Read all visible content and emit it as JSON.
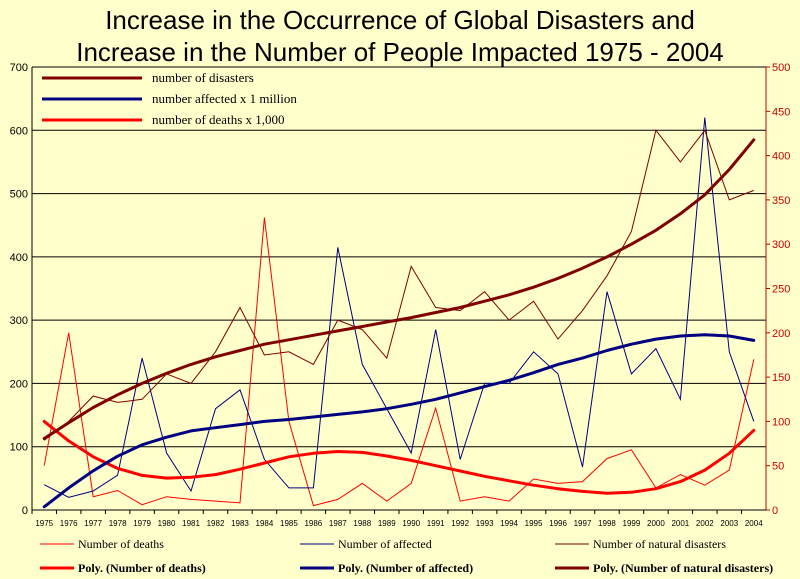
{
  "chart_data": {
    "type": "line",
    "title_line1": "Increase in the Occurrence of Global Disasters and",
    "title_line2": "Increase in the Number of People Impacted 1975 - 2004",
    "categories": [
      "1975",
      "1976",
      "1977",
      "1978",
      "1979",
      "1980",
      "1981",
      "1982",
      "1983",
      "1984",
      "1985",
      "1986",
      "1987",
      "1988",
      "1989",
      "1990",
      "1991",
      "1992",
      "1993",
      "1994",
      "1995",
      "1996",
      "1997",
      "1998",
      "1999",
      "2000",
      "2001",
      "2002",
      "2003",
      "2004"
    ],
    "y_left": {
      "min": 0,
      "max": 700,
      "ticks": [
        "0",
        "100",
        "200",
        "300",
        "400",
        "500",
        "600",
        "700"
      ]
    },
    "y_right": {
      "min": 0,
      "max": 500,
      "ticks": [
        "0",
        "50",
        "100",
        "150",
        "200",
        "250",
        "300",
        "350",
        "400",
        "450",
        "500"
      ]
    },
    "series": [
      {
        "name": "Number of deaths",
        "axis": "right",
        "color": "#ff0000",
        "values": [
          50,
          200,
          15,
          22,
          6,
          15,
          12,
          10,
          8,
          330,
          100,
          5,
          12,
          30,
          10,
          30,
          115,
          10,
          15,
          10,
          35,
          30,
          32,
          58,
          68,
          25,
          40,
          28,
          45,
          170
        ]
      },
      {
        "name": "Number of affected",
        "axis": "left",
        "color": "#000080",
        "values": [
          40,
          20,
          30,
          55,
          240,
          90,
          30,
          160,
          190,
          80,
          35,
          35,
          415,
          230,
          160,
          90,
          285,
          80,
          200,
          200,
          250,
          215,
          68,
          345,
          215,
          255,
          175,
          620,
          250,
          140
        ]
      },
      {
        "name": "Number of natural disasters",
        "axis": "left",
        "color": "#800000",
        "values": [
          110,
          140,
          180,
          170,
          175,
          215,
          200,
          250,
          320,
          245,
          250,
          230,
          300,
          285,
          240,
          385,
          320,
          315,
          345,
          300,
          330,
          270,
          315,
          370,
          440,
          600,
          550,
          600,
          490,
          505
        ]
      }
    ],
    "trendlines": [
      {
        "name": "Poly. (Number of deaths)",
        "axis": "right",
        "color": "#ff0000",
        "values": [
          100,
          78,
          60,
          47,
          39,
          36,
          37,
          40,
          46,
          53,
          60,
          64,
          66,
          65,
          61,
          56,
          50,
          44,
          38,
          33,
          28,
          24,
          21,
          19,
          20,
          24,
          32,
          45,
          64,
          90
        ]
      },
      {
        "name": "Poly. (Number of affected)",
        "axis": "left",
        "color": "#000080",
        "values": [
          5,
          35,
          62,
          85,
          103,
          115,
          125,
          130,
          135,
          140,
          143,
          147,
          151,
          155,
          160,
          167,
          175,
          185,
          195,
          205,
          217,
          230,
          240,
          252,
          262,
          270,
          275,
          277,
          275,
          268
        ]
      },
      {
        "name": "Poly. (Number of natural disasters)",
        "axis": "left",
        "color": "#800000",
        "values": [
          113,
          138,
          162,
          182,
          200,
          216,
          230,
          242,
          252,
          262,
          269,
          276,
          283,
          290,
          297,
          304,
          312,
          320,
          330,
          340,
          352,
          366,
          382,
          400,
          420,
          442,
          468,
          498,
          538,
          585
        ]
      }
    ],
    "legend_top": [
      {
        "label": "number of  disasters",
        "color": "#800000"
      },
      {
        "label": "number affected x 1 million",
        "color": "#000080"
      },
      {
        "label": "number of deaths x 1,000",
        "color": "#ff0000"
      }
    ],
    "legend_bottom": [
      {
        "label": "Number of deaths",
        "color": "#ff0000",
        "style": "thin"
      },
      {
        "label": "Number of affected",
        "color": "#000080",
        "style": "thin"
      },
      {
        "label": "Number of natural disasters",
        "color": "#800000",
        "style": "thin"
      },
      {
        "label": "Poly. (Number of deaths)",
        "color": "#ff0000",
        "style": "thick"
      },
      {
        "label": "Poly. (Number of affected)",
        "color": "#000080",
        "style": "thick"
      },
      {
        "label": "Poly. (Number of natural disasters)",
        "color": "#800000",
        "style": "thick"
      }
    ]
  }
}
